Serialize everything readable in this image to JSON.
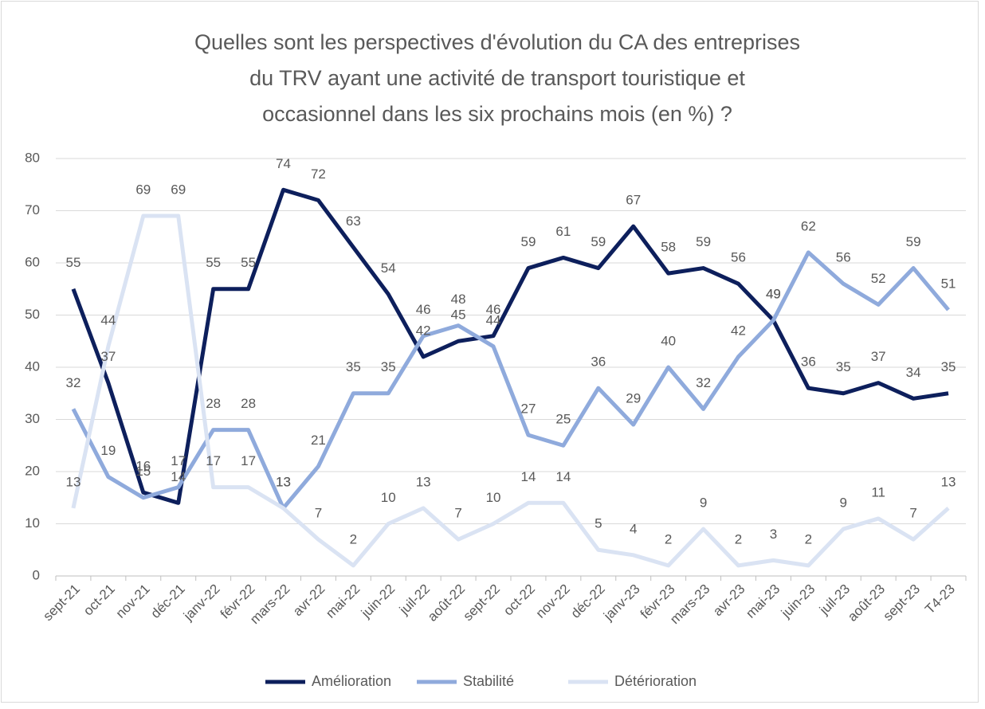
{
  "chart_data": {
    "type": "line",
    "title": [
      "Quelles sont les perspectives d'évolution du CA des entreprises",
      "du TRV ayant une activité de transport touristique et",
      "occasionnel dans les six prochains mois (en %) ?"
    ],
    "categories": [
      "sept-21",
      "oct-21",
      "nov-21",
      "déc-21",
      "janv-22",
      "févr-22",
      "mars-22",
      "avr-22",
      "mai-22",
      "juin-22",
      "juil-22",
      "août-22",
      "sept-22",
      "oct-22",
      "nov-22",
      "déc-22",
      "janv-23",
      "févr-23",
      "mars-23",
      "avr-23",
      "mai-23",
      "juin-23",
      "juil-23",
      "août-23",
      "sept-23",
      "T4-23"
    ],
    "series": [
      {
        "name": "Amélioration",
        "color": "#0d1f5c",
        "values": [
          55,
          37,
          16,
          14,
          55,
          55,
          74,
          72,
          63,
          54,
          42,
          45,
          46,
          59,
          61,
          59,
          67,
          58,
          59,
          56,
          49,
          36,
          35,
          37,
          34,
          35
        ]
      },
      {
        "name": "Stabilité",
        "color": "#8faadc",
        "values": [
          32,
          19,
          15,
          17,
          28,
          28,
          13,
          21,
          35,
          35,
          46,
          48,
          44,
          27,
          25,
          36,
          29,
          40,
          32,
          42,
          49,
          62,
          56,
          52,
          59,
          51
        ]
      },
      {
        "name": "Détérioration",
        "color": "#dae3f3",
        "values": [
          13,
          44,
          69,
          69,
          17,
          17,
          13,
          7,
          2,
          10,
          13,
          7,
          10,
          14,
          14,
          5,
          4,
          2,
          9,
          2,
          3,
          2,
          9,
          11,
          7,
          13
        ]
      }
    ],
    "ylim": [
      0,
      80
    ],
    "yticks": [
      0,
      10,
      20,
      30,
      40,
      50,
      60,
      70,
      80
    ],
    "grid": true,
    "legend": "bottom"
  }
}
